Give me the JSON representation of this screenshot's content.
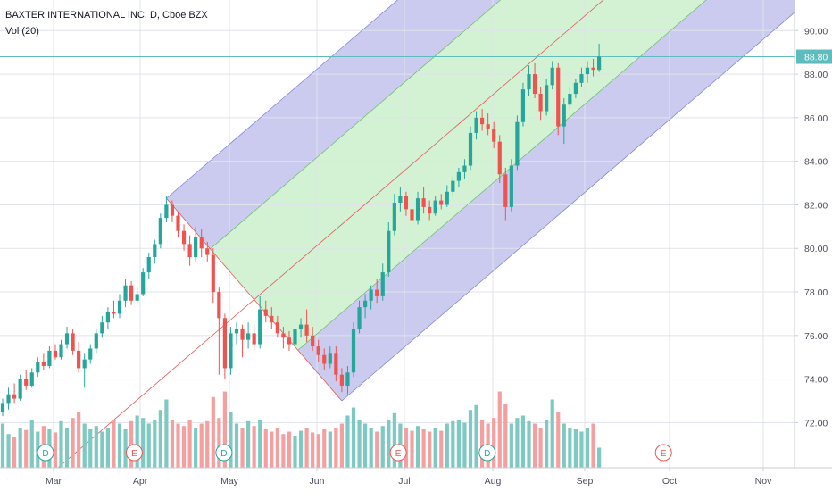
{
  "legend": {
    "title": "BAXTER INTERNATIONAL INC, D, Cboe BZX",
    "volume_label": "Vol (20)"
  },
  "price_marker": {
    "value": "88.80",
    "bg_color": "#5fbcbc"
  },
  "colors": {
    "up": "#26a69a",
    "down": "#ef5350",
    "vol_up": "#7ec9c2",
    "vol_down": "#f4a0a0",
    "channel_outer": "#9fa0e0",
    "channel_inner": "#aee6ae",
    "median": "#e15a5a",
    "event_d": "#26a69a",
    "event_e": "#ef5350"
  },
  "events": [
    {
      "month": "Mar",
      "day": 0.25,
      "label": "D",
      "type": "dividend"
    },
    {
      "month": "Apr",
      "day": 0.85,
      "label": "E",
      "type": "earnings"
    },
    {
      "month": "May",
      "day": 0.97,
      "label": "D",
      "type": "dividend"
    },
    {
      "month": "Jul",
      "day": 0.78,
      "label": "E",
      "type": "earnings"
    },
    {
      "month": "Aug",
      "day": 0.95,
      "label": "D",
      "type": "dividend"
    },
    {
      "month": "Oct",
      "day": 0.8,
      "label": "E",
      "type": "earnings"
    }
  ],
  "chart_data": {
    "type": "candlestick",
    "title": "BAXTER INTERNATIONAL INC, D, Cboe BZX",
    "indicator": "Vol (20)",
    "x_tick_labels": [
      "Mar",
      "Apr",
      "May",
      "Jun",
      "Jul",
      "Aug",
      "Sep",
      "Oct",
      "Nov"
    ],
    "y_tick_labels": [
      "72.00",
      "74.00",
      "76.00",
      "78.00",
      "80.00",
      "82.00",
      "84.00",
      "86.00",
      "88.00",
      "90.00"
    ],
    "ylim": [
      70.5,
      91.2
    ],
    "last_price": 88.8,
    "candles": [
      [
        72.5,
        73.1,
        72.3,
        72.9
      ],
      [
        72.9,
        73.6,
        72.6,
        73.3
      ],
      [
        73.3,
        73.8,
        72.9,
        73.1
      ],
      [
        73.1,
        74.2,
        73.0,
        74.0
      ],
      [
        74.0,
        74.4,
        73.5,
        73.7
      ],
      [
        73.7,
        74.5,
        73.6,
        74.3
      ],
      [
        74.3,
        75.0,
        74.1,
        74.8
      ],
      [
        74.8,
        75.2,
        74.4,
        74.6
      ],
      [
        74.6,
        75.5,
        74.5,
        75.3
      ],
      [
        75.3,
        75.6,
        74.9,
        75.0
      ],
      [
        75.0,
        75.8,
        74.9,
        75.6
      ],
      [
        75.6,
        76.4,
        75.4,
        76.1
      ],
      [
        76.1,
        76.3,
        75.1,
        75.3
      ],
      [
        75.3,
        75.7,
        74.3,
        74.5
      ],
      [
        74.5,
        75.2,
        73.6,
        74.9
      ],
      [
        74.9,
        75.6,
        74.7,
        75.4
      ],
      [
        75.4,
        76.3,
        75.2,
        76.1
      ],
      [
        76.1,
        76.9,
        75.9,
        76.6
      ],
      [
        76.6,
        77.3,
        76.3,
        77.1
      ],
      [
        77.1,
        77.6,
        76.8,
        77.0
      ],
      [
        77.0,
        77.9,
        76.8,
        77.6
      ],
      [
        77.6,
        78.6,
        77.3,
        78.3
      ],
      [
        78.3,
        78.5,
        77.4,
        77.6
      ],
      [
        77.6,
        78.2,
        77.4,
        77.9
      ],
      [
        77.9,
        79.1,
        77.8,
        78.9
      ],
      [
        78.9,
        79.8,
        78.6,
        79.6
      ],
      [
        79.6,
        80.4,
        79.3,
        80.2
      ],
      [
        80.2,
        81.6,
        80.0,
        81.4
      ],
      [
        81.4,
        82.4,
        81.2,
        82.0
      ],
      [
        82.0,
        82.2,
        81.2,
        81.5
      ],
      [
        81.5,
        81.7,
        80.5,
        80.8
      ],
      [
        80.8,
        81.1,
        79.9,
        80.2
      ],
      [
        80.2,
        80.6,
        79.2,
        79.6
      ],
      [
        79.6,
        81.0,
        79.4,
        80.5
      ],
      [
        80.5,
        80.9,
        79.6,
        80.0
      ],
      [
        80.0,
        80.3,
        79.4,
        79.7
      ],
      [
        79.7,
        80.0,
        77.5,
        78.0
      ],
      [
        78.0,
        78.2,
        74.2,
        76.8
      ],
      [
        76.8,
        77.0,
        74.0,
        74.5
      ],
      [
        74.5,
        76.4,
        74.2,
        76.1
      ],
      [
        76.1,
        76.6,
        75.6,
        76.3
      ],
      [
        76.3,
        76.5,
        75.0,
        75.8
      ],
      [
        75.8,
        76.6,
        75.4,
        76.1
      ],
      [
        76.1,
        76.5,
        75.3,
        75.6
      ],
      [
        75.6,
        77.8,
        75.4,
        77.2
      ],
      [
        77.2,
        77.6,
        76.6,
        76.9
      ],
      [
        76.9,
        77.3,
        76.3,
        76.6
      ],
      [
        76.6,
        76.9,
        75.9,
        76.1
      ],
      [
        76.1,
        76.4,
        75.4,
        75.9
      ],
      [
        75.9,
        76.2,
        75.3,
        75.6
      ],
      [
        75.6,
        76.6,
        75.4,
        76.3
      ],
      [
        76.3,
        76.8,
        75.9,
        76.5
      ],
      [
        76.5,
        77.2,
        75.7,
        76.0
      ],
      [
        76.0,
        76.4,
        75.3,
        75.5
      ],
      [
        75.5,
        75.8,
        74.8,
        75.1
      ],
      [
        75.1,
        75.4,
        74.4,
        74.7
      ],
      [
        74.7,
        75.5,
        74.5,
        75.2
      ],
      [
        75.2,
        75.5,
        73.9,
        74.2
      ],
      [
        74.2,
        74.5,
        73.4,
        73.7
      ],
      [
        73.7,
        74.6,
        73.3,
        74.3
      ],
      [
        74.3,
        76.6,
        74.1,
        76.3
      ],
      [
        76.3,
        77.6,
        76.1,
        77.3
      ],
      [
        77.3,
        77.9,
        76.8,
        77.6
      ],
      [
        77.6,
        78.3,
        77.2,
        78.1
      ],
      [
        78.1,
        78.6,
        77.5,
        77.8
      ],
      [
        77.8,
        79.3,
        77.6,
        78.9
      ],
      [
        78.9,
        81.2,
        78.7,
        80.8
      ],
      [
        80.8,
        82.5,
        80.6,
        82.1
      ],
      [
        82.1,
        82.8,
        81.7,
        82.4
      ],
      [
        82.4,
        82.6,
        81.5,
        81.8
      ],
      [
        81.8,
        82.1,
        81.0,
        81.3
      ],
      [
        81.3,
        82.6,
        81.1,
        82.3
      ],
      [
        82.3,
        82.8,
        81.6,
        81.9
      ],
      [
        81.9,
        82.2,
        81.3,
        81.6
      ],
      [
        81.6,
        82.4,
        81.5,
        82.2
      ],
      [
        82.2,
        82.5,
        81.8,
        82.0
      ],
      [
        82.0,
        82.9,
        81.9,
        82.6
      ],
      [
        82.6,
        83.3,
        82.4,
        83.1
      ],
      [
        83.1,
        83.7,
        82.8,
        83.5
      ],
      [
        83.5,
        84.1,
        83.2,
        83.8
      ],
      [
        83.8,
        85.6,
        83.6,
        85.3
      ],
      [
        85.3,
        86.3,
        85.0,
        86.0
      ],
      [
        86.0,
        86.4,
        85.4,
        85.7
      ],
      [
        85.7,
        86.2,
        85.2,
        85.5
      ],
      [
        85.5,
        85.8,
        84.6,
        84.9
      ],
      [
        84.9,
        85.2,
        83.0,
        83.4
      ],
      [
        83.4,
        83.7,
        81.3,
        81.9
      ],
      [
        81.9,
        84.1,
        81.7,
        83.8
      ],
      [
        83.8,
        86.1,
        83.6,
        85.8
      ],
      [
        85.8,
        87.6,
        85.6,
        87.3
      ],
      [
        87.3,
        88.4,
        87.0,
        88.0
      ],
      [
        88.0,
        88.5,
        86.9,
        87.1
      ],
      [
        87.1,
        87.4,
        85.9,
        86.3
      ],
      [
        86.3,
        87.8,
        86.1,
        87.5
      ],
      [
        87.5,
        88.6,
        87.3,
        88.3
      ],
      [
        88.3,
        88.5,
        85.2,
        85.6
      ],
      [
        85.6,
        86.9,
        84.8,
        86.6
      ],
      [
        86.6,
        87.4,
        86.4,
        87.1
      ],
      [
        87.1,
        87.8,
        86.9,
        87.6
      ],
      [
        87.6,
        88.3,
        87.4,
        88.0
      ],
      [
        88.0,
        88.6,
        87.6,
        88.3
      ],
      [
        88.3,
        88.7,
        87.9,
        88.2
      ],
      [
        88.2,
        89.4,
        88.1,
        88.8
      ]
    ],
    "volume_profile": [
      0.55,
      0.42,
      0.38,
      0.5,
      0.47,
      0.6,
      0.45,
      0.52,
      0.48,
      0.44,
      0.58,
      0.5,
      0.62,
      0.7,
      0.55,
      0.48,
      0.52,
      0.45,
      0.5,
      0.6,
      0.55,
      0.48,
      0.58,
      0.65,
      0.62,
      0.55,
      0.6,
      0.72,
      0.85,
      0.6,
      0.55,
      0.52,
      0.6,
      0.5,
      0.55,
      0.58,
      0.88,
      0.62,
      0.95,
      0.7,
      0.55,
      0.5,
      0.58,
      0.52,
      0.6,
      0.48,
      0.45,
      0.5,
      0.42,
      0.45,
      0.4,
      0.46,
      0.5,
      0.44,
      0.42,
      0.48,
      0.45,
      0.5,
      0.55,
      0.65,
      0.75,
      0.6,
      0.55,
      0.5,
      0.45,
      0.52,
      0.6,
      0.68,
      0.55,
      0.5,
      0.46,
      0.52,
      0.48,
      0.45,
      0.5,
      0.46,
      0.55,
      0.58,
      0.6,
      0.56,
      0.72,
      0.78,
      0.6,
      0.55,
      0.62,
      0.95,
      0.8,
      0.55,
      0.62,
      0.65,
      0.58,
      0.55,
      0.5,
      0.6,
      0.85,
      0.7,
      0.55,
      0.5,
      0.48,
      0.45,
      0.5,
      0.55,
      0.25
    ],
    "pitchfork": {
      "pivot_a": {
        "index": 28,
        "price": 82.3
      },
      "pivot_b": {
        "index": 32,
        "price": 80.6
      },
      "pivot_c": {
        "index": 58,
        "price": 73.0
      }
    }
  }
}
